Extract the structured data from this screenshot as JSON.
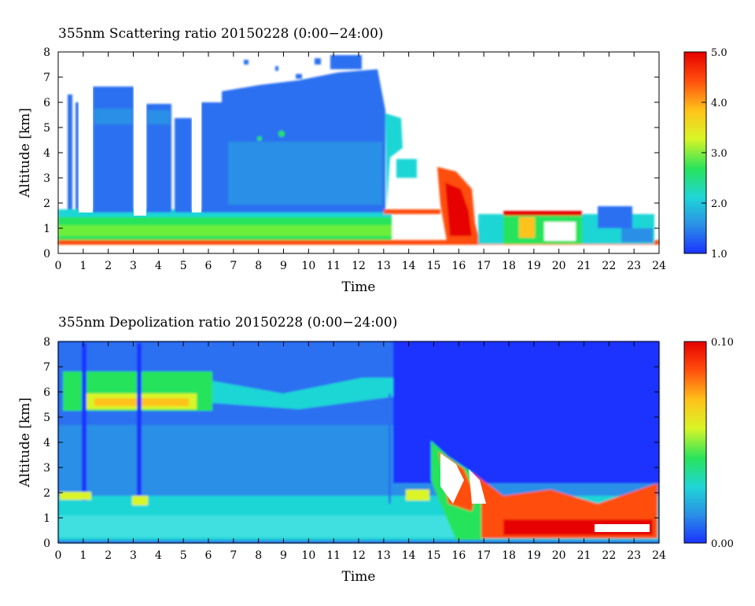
{
  "chart_data": [
    {
      "type": "heatmap",
      "title": "355nm Scattering ratio  20150228 (0:00−24:00)",
      "xlabel": "Time",
      "ylabel": "Altitude [km]",
      "xlim": [
        0,
        24
      ],
      "ylim": [
        0,
        8
      ],
      "x_ticks": [
        "0",
        "1",
        "2",
        "3",
        "4",
        "5",
        "6",
        "7",
        "8",
        "9",
        "10",
        "11",
        "12",
        "13",
        "14",
        "15",
        "16",
        "17",
        "18",
        "19",
        "20",
        "21",
        "22",
        "23",
        "24"
      ],
      "y_ticks": [
        "0",
        "1",
        "2",
        "3",
        "4",
        "5",
        "6",
        "7",
        "8"
      ],
      "colorbar": {
        "min": 1.0,
        "max": 5.0,
        "ticks": [
          "1.0",
          "2.0",
          "3.0",
          "4.0",
          "5.0"
        ]
      },
      "colormap": [
        "#1a33ff",
        "#2b8fe6",
        "#1fd6d6",
        "#27e35c",
        "#d9f526",
        "#ffc21a",
        "#ff4d0d",
        "#e60000"
      ],
      "features": [
        {
          "desc": "surface aerosol layer",
          "x": [
            0,
            13.2
          ],
          "y": [
            0.3,
            1.5
          ],
          "value": 2.6
        },
        {
          "desc": "mid-level cloud",
          "x": [
            1.4,
            13.0
          ],
          "y": [
            1.5,
            6.5
          ],
          "value": 1.3
        },
        {
          "desc": "sparse high cloud tops",
          "x": [
            7,
            13
          ],
          "y": [
            6.5,
            8.0
          ],
          "value": 1.2
        },
        {
          "desc": "low clouds",
          "x": [
            13,
            24
          ],
          "y": [
            0.3,
            2.5
          ],
          "value": 4.5
        }
      ]
    },
    {
      "type": "heatmap",
      "title": "355nm Depolization ratio  20150228 (0:00−24:00)",
      "xlabel": "Time",
      "ylabel": "Altitude [km]",
      "xlim": [
        0,
        24
      ],
      "ylim": [
        0,
        8
      ],
      "x_ticks": [
        "0",
        "1",
        "2",
        "3",
        "4",
        "5",
        "6",
        "7",
        "8",
        "9",
        "10",
        "11",
        "12",
        "13",
        "14",
        "15",
        "16",
        "17",
        "18",
        "19",
        "20",
        "21",
        "22",
        "23",
        "24"
      ],
      "y_ticks": [
        "0",
        "1",
        "2",
        "3",
        "4",
        "5",
        "6",
        "7",
        "8"
      ],
      "colorbar": {
        "min": 0.0,
        "max": 0.1,
        "ticks": [
          "0.00",
          "0.10"
        ]
      },
      "colormap": [
        "#1a33ff",
        "#2b8fe6",
        "#1fd6d6",
        "#27e35c",
        "#d9f526",
        "#ffc21a",
        "#ff4d0d",
        "#e60000"
      ],
      "features": [
        {
          "desc": "ice cloud layer",
          "x": [
            0.2,
            5.5
          ],
          "y": [
            5.0,
            6.5
          ],
          "value": 0.05
        },
        {
          "desc": "boundary layer",
          "x": [
            0,
            24
          ],
          "y": [
            0.1,
            1.6
          ],
          "value": 0.02
        },
        {
          "desc": "depolarizing low layer",
          "x": [
            16.5,
            24
          ],
          "y": [
            0.2,
            1.5
          ],
          "value": 0.09
        },
        {
          "desc": "cloud top band",
          "x": [
            17,
            24
          ],
          "y": [
            1.5,
            2.3
          ],
          "value": 0.06
        }
      ]
    }
  ]
}
